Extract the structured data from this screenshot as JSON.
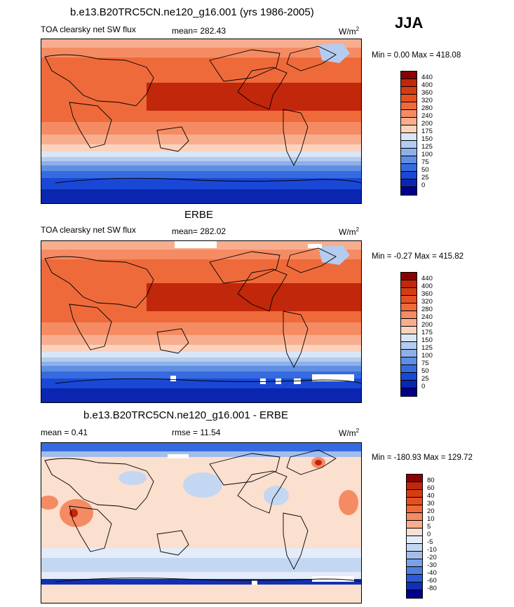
{
  "season": "JJA",
  "panels": [
    {
      "title": "b.e13.B20TRC5CN.ne120_g16.001 (yrs 1986-2005)",
      "left_label": "TOA clearsky net SW flux",
      "center_label": "mean= 282.43",
      "units": "W/m",
      "units_sup": "2",
      "minmax": "Min =   0.00 Max = 418.08",
      "colorbar": {
        "colors": [
          "#8b0000",
          "#c1270b",
          "#d63b12",
          "#e6501f",
          "#ef6a3a",
          "#f58b63",
          "#f8ae8e",
          "#fbd2bc",
          "#d9e6f7",
          "#b4ccf0",
          "#8db0e9",
          "#5f8ee3",
          "#366be0",
          "#1a48d6",
          "#0a26b0",
          "#00008b"
        ],
        "labels": [
          "440",
          "400",
          "360",
          "320",
          "280",
          "240",
          "200",
          "175",
          "150",
          "125",
          "100",
          "75",
          "50",
          "25",
          "0"
        ]
      }
    },
    {
      "title": "ERBE",
      "left_label": "TOA clearsky net SW flux",
      "center_label": "mean= 282.02",
      "units": "W/m",
      "units_sup": "2",
      "minmax": "Min =  -0.27 Max = 415.82",
      "colorbar": {
        "colors": [
          "#8b0000",
          "#c1270b",
          "#d63b12",
          "#e6501f",
          "#ef6a3a",
          "#f58b63",
          "#f8ae8e",
          "#fbd2bc",
          "#d9e6f7",
          "#b4ccf0",
          "#8db0e9",
          "#5f8ee3",
          "#366be0",
          "#1a48d6",
          "#0a26b0",
          "#00008b"
        ],
        "labels": [
          "440",
          "400",
          "360",
          "320",
          "280",
          "240",
          "200",
          "175",
          "150",
          "125",
          "100",
          "75",
          "50",
          "25",
          "0"
        ]
      }
    },
    {
      "title": "b.e13.B20TRC5CN.ne120_g16.001 - ERBE",
      "left_label": "mean =   0.41",
      "center_label": "rmse =  11.54",
      "units": "W/m",
      "units_sup": "2",
      "minmax": "Min = -180.93 Max = 129.72",
      "colorbar": {
        "colors": [
          "#8b0000",
          "#c1270b",
          "#d63b12",
          "#e6501f",
          "#ef6a3a",
          "#f58b63",
          "#f8ae8e",
          "#fbdfcf",
          "#e3ecf8",
          "#c4d7f2",
          "#a2bfec",
          "#7aa2e6",
          "#507fe0",
          "#2c59d6",
          "#1230b4",
          "#00008b"
        ],
        "labels": [
          "80",
          "60",
          "40",
          "30",
          "20",
          "10",
          "5",
          "0",
          "-5",
          "-10",
          "-20",
          "-30",
          "-40",
          "-60",
          "-80"
        ]
      }
    }
  ]
}
